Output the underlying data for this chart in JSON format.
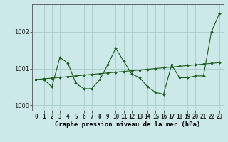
{
  "xlabel": "Graphe pression niveau de la mer (hPa)",
  "background_color": "#cce8e8",
  "grid_color": "#aacccc",
  "line_color": "#1a5c1a",
  "x_values": [
    0,
    1,
    2,
    3,
    4,
    5,
    6,
    7,
    8,
    9,
    10,
    11,
    12,
    13,
    14,
    15,
    16,
    17,
    18,
    19,
    20,
    21,
    22,
    23
  ],
  "pressure_line": [
    1000.7,
    1000.7,
    1000.5,
    1001.3,
    1001.15,
    1000.6,
    1000.45,
    1000.45,
    1000.7,
    1001.1,
    1001.55,
    1001.2,
    1000.85,
    1000.75,
    1000.5,
    1000.35,
    1000.3,
    1001.1,
    1000.75,
    1000.75,
    1000.8,
    1000.8,
    1002.0,
    1002.5
  ],
  "trend_line": [
    1000.7,
    1000.72,
    1000.74,
    1000.76,
    1000.78,
    1000.8,
    1000.82,
    1000.84,
    1000.86,
    1000.88,
    1000.9,
    1000.92,
    1000.94,
    1000.96,
    1000.98,
    1001.0,
    1001.02,
    1001.04,
    1001.06,
    1001.08,
    1001.1,
    1001.12,
    1001.14,
    1001.16
  ],
  "ylim": [
    999.85,
    1002.75
  ],
  "yticks": [
    1000,
    1001,
    1002
  ],
  "xticks": [
    0,
    1,
    2,
    3,
    4,
    5,
    6,
    7,
    8,
    9,
    10,
    11,
    12,
    13,
    14,
    15,
    16,
    17,
    18,
    19,
    20,
    21,
    22,
    23
  ],
  "xlabel_fontsize": 6.5,
  "tick_fontsize": 5.5
}
